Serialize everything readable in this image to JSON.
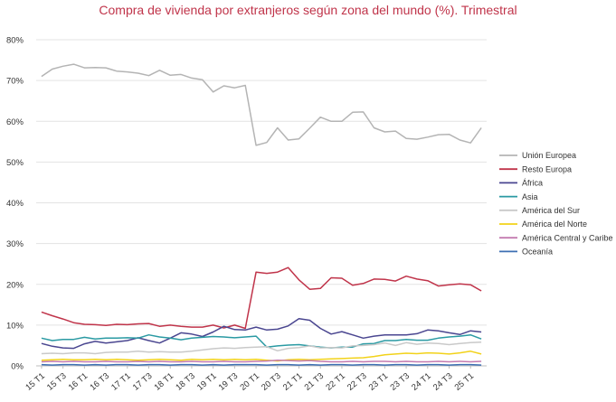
{
  "chart_data": {
    "type": "line",
    "title": "Compra de vivienda por extranjeros según zona del mundo (%). Trimestral",
    "xlabel": "",
    "ylabel": "",
    "ylim": [
      0,
      80
    ],
    "y_ticks": [
      "0%",
      "10%",
      "20%",
      "30%",
      "40%",
      "50%",
      "60%",
      "70%",
      "80%"
    ],
    "x_tick_labels": [
      "15 T1",
      "15 T3",
      "16 T1",
      "16 T3",
      "17 T1",
      "17 T3",
      "18 T1",
      "18 T3",
      "19 T1",
      "19 T3",
      "20 T1",
      "20 T3",
      "21 T1",
      "21 T3",
      "22 T1",
      "22 T3",
      "23 T1",
      "23 T3",
      "24 T1",
      "24 T3",
      "25 T1"
    ],
    "x": [
      "15 T1",
      "15 T2",
      "15 T3",
      "15 T4",
      "16 T1",
      "16 T2",
      "16 T3",
      "16 T4",
      "17 T1",
      "17 T2",
      "17 T3",
      "17 T4",
      "18 T1",
      "18 T2",
      "18 T3",
      "18 T4",
      "19 T1",
      "19 T2",
      "19 T3",
      "19 T4",
      "20 T1",
      "20 T2",
      "20 T3",
      "20 T4",
      "21 T1",
      "21 T2",
      "21 T3",
      "21 T4",
      "22 T1",
      "22 T2",
      "22 T3",
      "22 T4",
      "23 T1",
      "23 T2",
      "23 T3",
      "23 T4",
      "24 T1",
      "24 T2",
      "24 T3",
      "24 T4",
      "25 T1",
      "25 T2"
    ],
    "grid": "horizontal",
    "legend_position": "right",
    "series": [
      {
        "name": "Unión Europea",
        "color": "#b4b4b4",
        "values": [
          71.0,
          72.8,
          73.5,
          74.0,
          73.1,
          73.2,
          73.1,
          72.3,
          72.1,
          71.8,
          71.2,
          72.5,
          71.3,
          71.5,
          70.6,
          70.2,
          67.2,
          68.7,
          68.2,
          68.8,
          54.1,
          54.8,
          58.4,
          55.4,
          55.7,
          58.3,
          61.0,
          60.0,
          60.0,
          62.2,
          62.3,
          58.4,
          57.4,
          57.6,
          55.8,
          55.6,
          56.1,
          56.7,
          56.8,
          55.4,
          54.7,
          58.4
        ]
      },
      {
        "name": "Resto Europa",
        "color": "#c0344a",
        "values": [
          13.2,
          12.3,
          11.5,
          10.6,
          10.2,
          10.1,
          9.9,
          10.2,
          10.1,
          10.3,
          10.4,
          9.7,
          10.0,
          9.7,
          9.5,
          9.5,
          10.0,
          9.3,
          10.0,
          9.2,
          23.0,
          22.7,
          23.0,
          24.1,
          21.1,
          18.8,
          19.0,
          21.6,
          21.5,
          19.8,
          20.2,
          21.3,
          21.2,
          20.8,
          22.0,
          21.3,
          20.9,
          19.6,
          19.9,
          20.1,
          19.9,
          18.4
        ]
      },
      {
        "name": "África",
        "color": "#4a4690",
        "values": [
          5.5,
          4.8,
          4.4,
          4.3,
          5.4,
          6.0,
          5.6,
          5.9,
          6.2,
          6.9,
          6.2,
          5.6,
          6.8,
          8.1,
          7.8,
          7.2,
          8.3,
          9.7,
          8.9,
          8.8,
          9.5,
          8.8,
          9.0,
          9.8,
          11.6,
          11.2,
          9.2,
          7.8,
          8.4,
          7.6,
          6.8,
          7.3,
          7.6,
          7.6,
          7.6,
          7.9,
          8.8,
          8.6,
          8.1,
          7.7,
          8.6,
          8.3
        ]
      },
      {
        "name": "Asia",
        "color": "#2a9aa3",
        "values": [
          6.8,
          6.2,
          6.5,
          6.5,
          7.0,
          6.6,
          6.8,
          6.8,
          6.9,
          6.8,
          7.6,
          7.1,
          6.8,
          6.4,
          6.8,
          7.0,
          7.2,
          7.1,
          6.9,
          7.1,
          7.3,
          4.6,
          4.9,
          5.1,
          5.2,
          4.9,
          4.6,
          4.4,
          4.6,
          4.6,
          5.4,
          5.5,
          6.2,
          6.2,
          6.5,
          6.3,
          6.3,
          6.8,
          7.1,
          7.3,
          7.6,
          6.6
        ]
      },
      {
        "name": "América del Sur",
        "color": "#c9c9c9",
        "values": [
          3.0,
          3.1,
          3.0,
          3.2,
          3.2,
          3.0,
          3.3,
          3.4,
          3.4,
          3.6,
          3.4,
          3.5,
          3.4,
          3.4,
          3.6,
          3.9,
          4.2,
          4.4,
          4.3,
          4.5,
          4.6,
          4.7,
          3.7,
          4.3,
          4.5,
          4.9,
          4.4,
          4.5,
          4.4,
          4.9,
          5.0,
          5.2,
          5.6,
          5.0,
          5.7,
          5.3,
          5.6,
          5.5,
          5.2,
          5.5,
          5.7,
          5.8
        ]
      },
      {
        "name": "América del Norte",
        "color": "#f2d21a",
        "values": [
          1.4,
          1.5,
          1.6,
          1.5,
          1.5,
          1.6,
          1.5,
          1.6,
          1.5,
          1.4,
          1.5,
          1.6,
          1.5,
          1.4,
          1.6,
          1.5,
          1.6,
          1.5,
          1.6,
          1.5,
          1.6,
          1.4,
          1.2,
          1.5,
          1.6,
          1.5,
          1.6,
          1.7,
          1.8,
          1.9,
          2.0,
          2.3,
          2.7,
          2.9,
          3.1,
          3.0,
          3.2,
          3.1,
          2.9,
          3.2,
          3.6,
          2.9
        ]
      },
      {
        "name": "América Central y Caribe",
        "color": "#c47bb0",
        "values": [
          1.0,
          1.1,
          1.0,
          1.1,
          1.0,
          1.0,
          1.1,
          1.0,
          1.0,
          1.1,
          1.0,
          1.1,
          1.0,
          1.0,
          1.1,
          1.0,
          1.0,
          1.1,
          1.0,
          1.0,
          1.1,
          1.2,
          1.4,
          1.3,
          1.2,
          1.3,
          1.1,
          1.0,
          1.0,
          1.1,
          1.0,
          1.1,
          1.1,
          1.0,
          1.1,
          1.0,
          1.0,
          1.1,
          1.0,
          1.1,
          1.0,
          1.1
        ]
      },
      {
        "name": "Oceanía",
        "color": "#3d6fb3",
        "values": [
          0.3,
          0.2,
          0.3,
          0.3,
          0.2,
          0.3,
          0.2,
          0.3,
          0.3,
          0.2,
          0.3,
          0.3,
          0.2,
          0.3,
          0.3,
          0.2,
          0.3,
          0.2,
          0.3,
          0.3,
          0.3,
          0.2,
          0.3,
          0.3,
          0.2,
          0.3,
          0.2,
          0.3,
          0.3,
          0.2,
          0.3,
          0.3,
          0.2,
          0.3,
          0.3,
          0.2,
          0.3,
          0.3,
          0.2,
          0.3,
          0.3,
          0.2
        ]
      }
    ]
  }
}
